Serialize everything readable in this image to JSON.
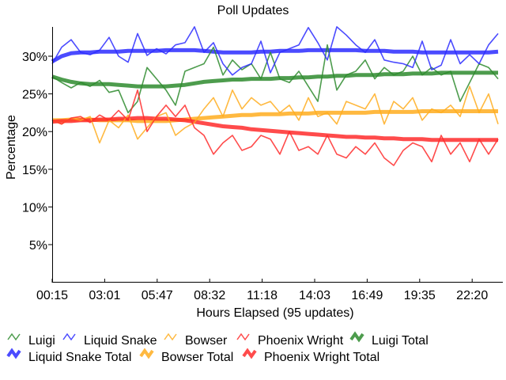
{
  "chart_data": {
    "type": "line",
    "title": "Poll Updates",
    "xlabel": "Hours Elapsed (95 updates)",
    "ylabel": "Percentage",
    "x_ticks": [
      "00:15",
      "03:01",
      "05:47",
      "08:32",
      "11:18",
      "14:03",
      "16:49",
      "19:35",
      "22:20"
    ],
    "y_ticks": [
      {
        "value": 5,
        "label": "5%"
      },
      {
        "value": 10,
        "label": "10%"
      },
      {
        "value": 15,
        "label": "15%"
      },
      {
        "value": 20,
        "label": "20%"
      },
      {
        "value": 25,
        "label": "25%"
      },
      {
        "value": 30,
        "label": "30%"
      }
    ],
    "xlim": [
      0,
      94
    ],
    "ylim": [
      0,
      34
    ],
    "x_unit": "update index (15 min per update), sampled every 2 updates",
    "x": [
      0,
      2,
      4,
      6,
      8,
      10,
      12,
      14,
      16,
      18,
      20,
      22,
      24,
      26,
      28,
      30,
      32,
      34,
      36,
      38,
      40,
      42,
      44,
      46,
      48,
      50,
      52,
      54,
      56,
      58,
      60,
      62,
      64,
      66,
      68,
      70,
      72,
      74,
      76,
      78,
      80,
      82,
      84,
      86,
      88,
      90,
      92,
      94
    ],
    "legend_position": "bottom",
    "series": [
      {
        "name": "Luigi",
        "color": "#2e8b2e",
        "thick": false,
        "values": [
          27.3,
          26.5,
          25.8,
          26.5,
          26.0,
          26.8,
          25.2,
          25.5,
          22.5,
          24.0,
          28.5,
          27.0,
          25.5,
          23.5,
          28.0,
          28.5,
          29.0,
          31.2,
          27.5,
          29.5,
          28.2,
          29.0,
          27.0,
          30.5,
          27.0,
          26.5,
          28.0,
          26.0,
          24.0,
          31.5,
          25.5,
          27.5,
          28.0,
          29.5,
          27.0,
          28.5,
          27.5,
          28.0,
          30.0,
          27.5,
          28.5,
          27.5,
          28.0,
          24.0,
          26.5,
          29.0,
          28.5,
          27.0
        ]
      },
      {
        "name": "Liquid Snake",
        "color": "#2b2bff",
        "thick": false,
        "values": [
          29.0,
          31.2,
          32.2,
          30.5,
          30.2,
          30.8,
          32.5,
          30.0,
          29.2,
          33.0,
          30.1,
          31.0,
          30.3,
          31.5,
          31.8,
          33.9,
          30.5,
          31.8,
          29.0,
          27.5,
          28.5,
          29.0,
          32.0,
          27.8,
          30.5,
          31.0,
          31.5,
          33.8,
          31.8,
          29.5,
          33.9,
          32.8,
          31.5,
          30.5,
          32.2,
          29.5,
          29.2,
          29.0,
          28.5,
          32.0,
          28.2,
          28.8,
          32.2,
          29.0,
          30.2,
          29.0,
          31.5,
          33.0
        ]
      },
      {
        "name": "Bowser",
        "color": "#ffad1f",
        "thick": false,
        "values": [
          21.5,
          21.0,
          21.8,
          21.5,
          22.0,
          18.5,
          21.5,
          20.5,
          22.2,
          19.0,
          20.5,
          22.0,
          22.5,
          19.5,
          20.5,
          21.2,
          23.0,
          24.5,
          22.0,
          25.5,
          23.0,
          24.5,
          23.5,
          24.0,
          22.5,
          23.5,
          21.5,
          24.5,
          22.0,
          22.5,
          21.0,
          24.0,
          23.5,
          23.0,
          25.0,
          21.0,
          24.0,
          23.0,
          24.5,
          21.5,
          23.0,
          22.5,
          23.5,
          22.0,
          26.0,
          22.5,
          25.0,
          21.0
        ]
      },
      {
        "name": "Phoenix Wright",
        "color": "#ff2b2b",
        "thick": false,
        "values": [
          21.5,
          21.0,
          21.8,
          22.0,
          21.2,
          22.2,
          21.5,
          22.8,
          21.5,
          25.5,
          20.0,
          22.0,
          23.5,
          22.0,
          23.5,
          20.5,
          19.5,
          17.0,
          18.5,
          19.5,
          17.5,
          18.0,
          19.5,
          19.0,
          17.0,
          20.0,
          17.5,
          18.0,
          17.0,
          19.5,
          17.0,
          16.5,
          18.0,
          17.0,
          18.5,
          16.5,
          15.5,
          17.5,
          18.5,
          18.0,
          16.0,
          19.5,
          17.0,
          18.5,
          16.0,
          19.0,
          17.0,
          19.0
        ]
      },
      {
        "name": "Luigi Total",
        "color": "#2e8b2e",
        "thick": true,
        "values": [
          27.3,
          26.9,
          26.6,
          26.4,
          26.3,
          26.3,
          26.3,
          26.2,
          26.1,
          26.0,
          26.0,
          26.0,
          26.0,
          26.1,
          26.2,
          26.4,
          26.6,
          26.7,
          26.8,
          26.9,
          26.9,
          27.0,
          27.0,
          27.0,
          27.1,
          27.1,
          27.2,
          27.2,
          27.3,
          27.3,
          27.4,
          27.4,
          27.5,
          27.5,
          27.5,
          27.6,
          27.6,
          27.6,
          27.7,
          27.7,
          27.7,
          27.8,
          27.8,
          27.8,
          27.8,
          27.8,
          27.8,
          27.8
        ]
      },
      {
        "name": "Liquid Snake Total",
        "color": "#2b2bff",
        "thick": true,
        "values": [
          29.3,
          30.0,
          30.4,
          30.5,
          30.5,
          30.6,
          30.6,
          30.6,
          30.7,
          30.7,
          30.7,
          30.7,
          30.8,
          30.8,
          30.8,
          30.8,
          30.7,
          30.6,
          30.5,
          30.5,
          30.5,
          30.5,
          30.6,
          30.6,
          30.7,
          30.7,
          30.7,
          30.8,
          30.8,
          30.8,
          30.8,
          30.8,
          30.8,
          30.7,
          30.7,
          30.7,
          30.6,
          30.6,
          30.6,
          30.5,
          30.5,
          30.5,
          30.5,
          30.5,
          30.5,
          30.5,
          30.5,
          30.6
        ]
      },
      {
        "name": "Bowser Total",
        "color": "#ffad1f",
        "thick": true,
        "values": [
          21.5,
          21.5,
          21.6,
          21.6,
          21.6,
          21.5,
          21.5,
          21.5,
          21.5,
          21.4,
          21.4,
          21.4,
          21.4,
          21.5,
          21.6,
          21.7,
          21.8,
          21.9,
          22.0,
          22.1,
          22.2,
          22.2,
          22.3,
          22.3,
          22.3,
          22.4,
          22.4,
          22.4,
          22.5,
          22.5,
          22.5,
          22.5,
          22.5,
          22.5,
          22.6,
          22.6,
          22.6,
          22.6,
          22.6,
          22.7,
          22.7,
          22.7,
          22.7,
          22.7,
          22.7,
          22.7,
          22.7,
          22.7
        ]
      },
      {
        "name": "Phoenix Wright Total",
        "color": "#ff2b2b",
        "thick": true,
        "values": [
          21.3,
          21.4,
          21.4,
          21.5,
          21.5,
          21.6,
          21.6,
          21.7,
          21.7,
          21.8,
          21.8,
          21.7,
          21.7,
          21.6,
          21.5,
          21.3,
          21.1,
          20.9,
          20.7,
          20.6,
          20.5,
          20.3,
          20.2,
          20.1,
          20.0,
          19.9,
          19.8,
          19.7,
          19.6,
          19.5,
          19.4,
          19.3,
          19.3,
          19.2,
          19.2,
          19.1,
          19.1,
          19.0,
          19.0,
          19.0,
          18.9,
          18.9,
          18.9,
          18.9,
          18.9,
          18.9,
          18.9,
          18.9
        ]
      }
    ]
  }
}
